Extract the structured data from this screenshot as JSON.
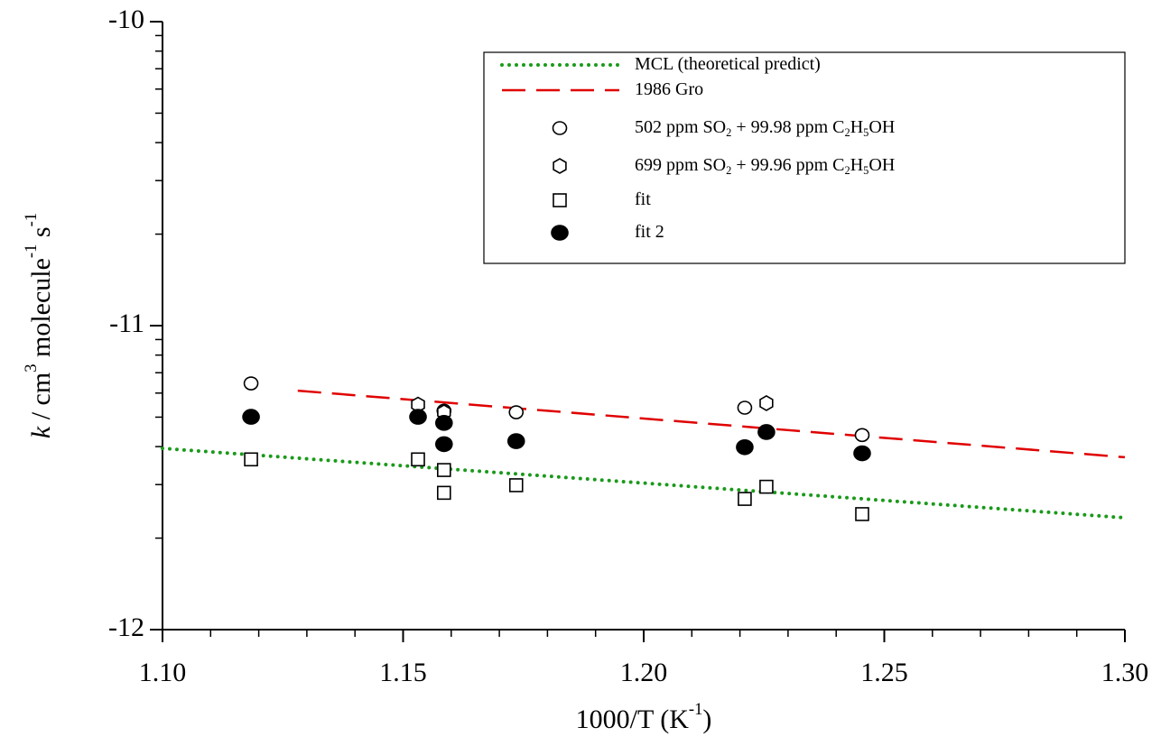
{
  "chart_data": {
    "type": "scatter",
    "xlabel": "1000/T (K-1)",
    "ylabel": "k / cm3 molecule-1 s-1",
    "xlim": [
      1.1,
      1.3
    ],
    "ylim": [
      -12,
      -10
    ],
    "xticks": [
      {
        "value": 1.1,
        "label": "1.10"
      },
      {
        "value": 1.15,
        "label": "1.15"
      },
      {
        "value": 1.2,
        "label": "1.20"
      },
      {
        "value": 1.25,
        "label": "1.25"
      },
      {
        "value": 1.3,
        "label": "1.30"
      }
    ],
    "yticks": [
      -12,
      -11,
      -10
    ],
    "legend": "upper right",
    "series": [
      {
        "name": "MCL (theoretical predict)",
        "kind": "line",
        "style": "dotted",
        "color": "#1a9a1a",
        "x": [
          1.1,
          1.3
        ],
        "values": [
          -11.404,
          -11.632
        ]
      },
      {
        "name": "1986 Gro",
        "kind": "line",
        "style": "dashed",
        "color": "#e00000",
        "x": [
          1.1281,
          1.3
        ],
        "values": [
          -11.214,
          -11.433
        ]
      },
      {
        "name": "502 ppm SO2 + 99.98 ppm C2H5OH",
        "kind": "marker",
        "marker": "circle",
        "filled": false,
        "color": "#000000",
        "x": [
          1.1184,
          1.1585,
          1.1735,
          1.221,
          1.2454
        ],
        "values": [
          -11.19,
          -11.28,
          -11.285,
          -11.27,
          -11.36
        ]
      },
      {
        "name": "699 ppm SO2 + 99.96 ppm C2H5OH",
        "kind": "marker",
        "marker": "hexagon",
        "filled": false,
        "color": "#000000",
        "x": [
          1.1531,
          1.1585,
          1.2255
        ],
        "values": [
          -11.26,
          -11.285,
          -11.255
        ]
      },
      {
        "name": "fit",
        "kind": "marker",
        "marker": "square",
        "filled": false,
        "color": "#000000",
        "x": [
          1.1184,
          1.1531,
          1.1585,
          1.1585,
          1.1735,
          1.221,
          1.2255,
          1.2454
        ],
        "values": [
          -11.44,
          -11.44,
          -11.475,
          -11.55,
          -11.525,
          -11.57,
          -11.53,
          -11.62
        ]
      },
      {
        "name": "fit 2",
        "kind": "marker",
        "marker": "circle",
        "filled": true,
        "color": "#000000",
        "x": [
          1.1184,
          1.1531,
          1.1585,
          1.1585,
          1.1735,
          1.221,
          1.2255,
          1.2454
        ],
        "values": [
          -11.3,
          -11.3,
          -11.32,
          -11.39,
          -11.38,
          -11.4,
          -11.35,
          -11.42
        ]
      }
    ]
  }
}
